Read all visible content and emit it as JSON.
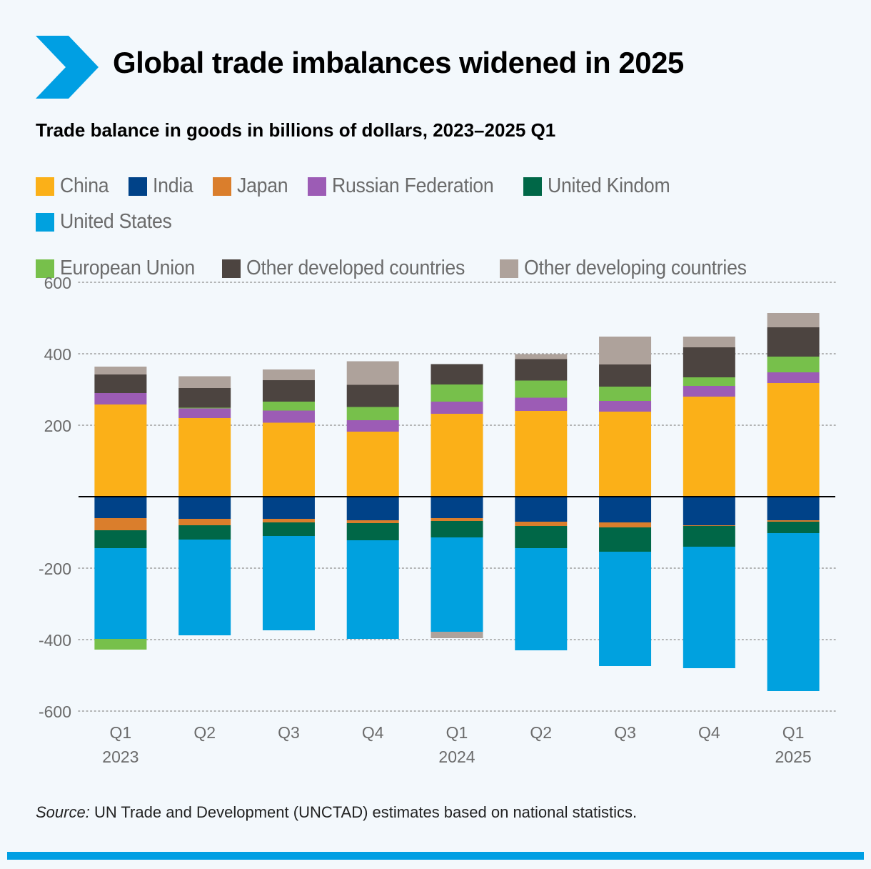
{
  "title": "Global trade imbalances widened in 2025",
  "subtitle": "Trade balance in goods in billions of dollars, 2023–2025 Q1",
  "source": {
    "label": "Source:",
    "text": " UN Trade and Development (UNCTAD) estimates based on national statistics."
  },
  "colors": {
    "accent": "#009fe3",
    "axis_text": "#6b6b6b",
    "grid": "#9a9a9a",
    "zero_line": "#000000"
  },
  "legend": [
    {
      "name": "China",
      "color": "#fbb018"
    },
    {
      "name": "India",
      "color": "#004288"
    },
    {
      "name": "Japan",
      "color": "#da7e2c"
    },
    {
      "name": "Russian Federation",
      "color": "#9c5cb5"
    },
    {
      "name": "United Kindom",
      "color": "#006747"
    },
    {
      "name": "United States",
      "color": "#00a1df"
    },
    {
      "name": "European Union",
      "color": "#77c04b"
    },
    {
      "name": "Other developed countries",
      "color": "#4c4440"
    },
    {
      "name": "Other developing countries",
      "color": "#aea29b"
    }
  ],
  "chart_data": {
    "type": "bar",
    "stacked": true,
    "title": "Trade balance in goods in billions of dollars, 2023–2025 Q1",
    "xlabel": "",
    "ylabel": "",
    "ylim": [
      -600,
      600
    ],
    "yticks": [
      600,
      400,
      200,
      -200,
      -400,
      -600
    ],
    "grid": true,
    "legend_position": "top",
    "categories": [
      {
        "quarter": "Q1",
        "year": "2023"
      },
      {
        "quarter": "Q2",
        "year": ""
      },
      {
        "quarter": "Q3",
        "year": ""
      },
      {
        "quarter": "Q4",
        "year": ""
      },
      {
        "quarter": "Q1",
        "year": "2024"
      },
      {
        "quarter": "Q2",
        "year": ""
      },
      {
        "quarter": "Q3",
        "year": ""
      },
      {
        "quarter": "Q4",
        "year": ""
      },
      {
        "quarter": "Q1",
        "year": "2025"
      }
    ],
    "series": [
      {
        "name": "China",
        "values": [
          258,
          220,
          207,
          182,
          232,
          240,
          238,
          280,
          318
        ]
      },
      {
        "name": "India",
        "values": [
          -60,
          -62,
          -62,
          -66,
          -60,
          -70,
          -72,
          -80,
          -66
        ]
      },
      {
        "name": "Japan",
        "values": [
          -34,
          -18,
          -10,
          -8,
          -8,
          -12,
          -14,
          -2,
          -4
        ]
      },
      {
        "name": "Russian Federation",
        "values": [
          32,
          27,
          34,
          32,
          34,
          37,
          30,
          30,
          30
        ]
      },
      {
        "name": "United Kindom",
        "values": [
          -50,
          -40,
          -38,
          -48,
          -46,
          -62,
          -68,
          -58,
          -32
        ]
      },
      {
        "name": "United States",
        "values": [
          -254,
          -268,
          -264,
          -276,
          -264,
          -286,
          -320,
          -340,
          -442
        ]
      },
      {
        "name": "European Union",
        "values": [
          -30,
          2,
          25,
          37,
          48,
          48,
          40,
          24,
          44
        ]
      },
      {
        "name": "Other developed countries",
        "values": [
          52,
          55,
          60,
          62,
          57,
          60,
          62,
          84,
          82
        ]
      },
      {
        "name": "Other developing countries",
        "values": [
          22,
          33,
          30,
          66,
          0,
          14,
          78,
          30,
          40
        ]
      },
      {
        "name": "Other developing countries (deficit)",
        "legend_ref": "Other developing countries",
        "values": [
          0,
          0,
          0,
          0,
          -18,
          0,
          0,
          0,
          0
        ]
      }
    ]
  }
}
